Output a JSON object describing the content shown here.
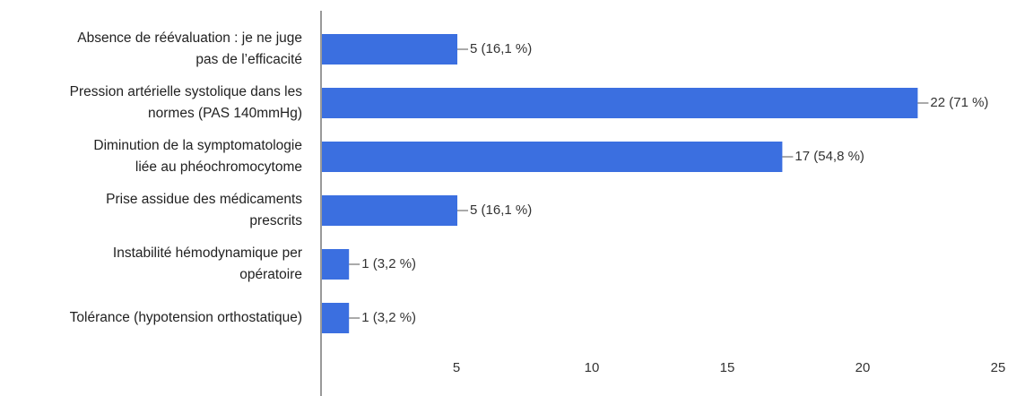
{
  "chart_data": {
    "type": "hbar",
    "categories": [
      "Absence de réévaluation : je ne juge\npas de l’efficacité",
      "Pression artérielle systolique dans les\nnormes (PAS 140mmHg)",
      "Diminution de la  symptomatologie\nliée au phéochromocytome",
      "Prise assidue des médicaments\nprescrits",
      "Instabilité hémodynamique per\nopératoire",
      "Tolérance (hypotension orthostatique)"
    ],
    "values": [
      5,
      22,
      17,
      5,
      1,
      1
    ],
    "value_labels": [
      "5 (16,1 %)",
      "22 (71 %)",
      "17 (54,8 %)",
      "5 (16,1 %)",
      "1 (3,2 %)",
      "1 (3,2 %)"
    ],
    "color": "#3b6fe0",
    "xlim": [
      0,
      25
    ],
    "xticks": [
      5,
      10,
      15,
      20,
      25
    ],
    "grid": false
  }
}
